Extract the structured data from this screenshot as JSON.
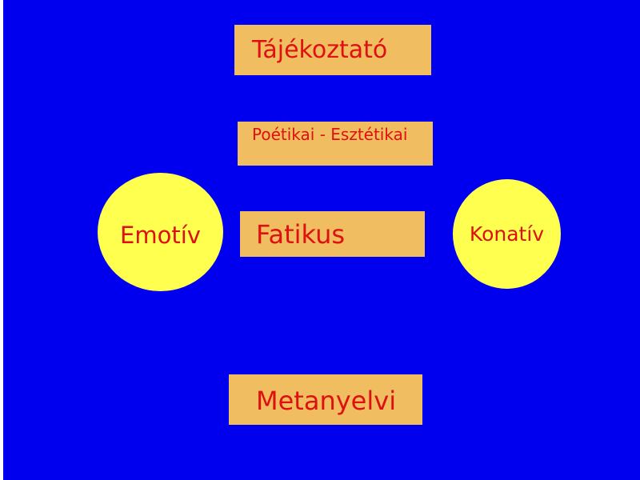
{
  "slide": {
    "background_color": "#0000ee",
    "box_color": "#f0bd60",
    "circle_color": "#ffff50",
    "text_color": "#dd1111"
  },
  "labels": {
    "tajekoztato": "Tájékoztató",
    "poetikai": "Poétikai - Esztétikai",
    "fatikus": "Fatikus",
    "metanyelvi": "Metanyelvi",
    "emotiv": "Emotív",
    "konativ": "Konatív"
  }
}
